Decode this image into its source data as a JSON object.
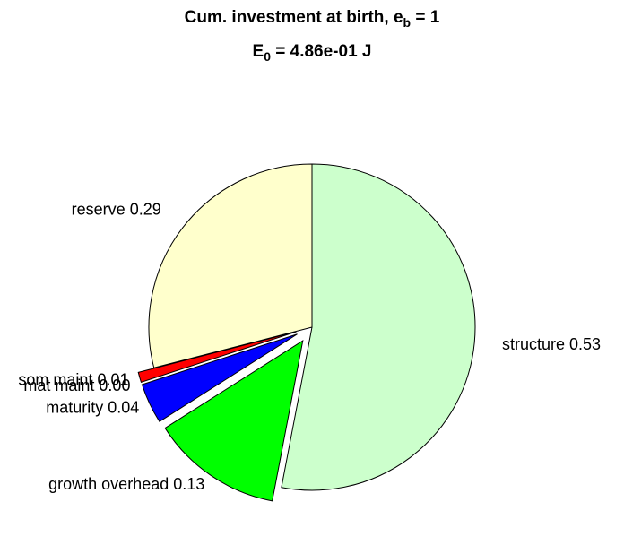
{
  "chart_data": {
    "type": "pie",
    "title": [
      "Cum. investment at birth, e",
      "b",
      " = 1"
    ],
    "subtitle": [
      "E",
      "0",
      " = 4.86e-01 J"
    ],
    "categories": [
      "structure",
      "growth overhead",
      "maturity",
      "mat maint",
      "som maint",
      "reserve"
    ],
    "values": [
      0.53,
      0.13,
      0.04,
      0,
      0.01,
      0.29
    ],
    "value_labels": [
      "0.53",
      "0.13",
      "0.04",
      "0.00",
      "0.01",
      "0.29"
    ],
    "colors": [
      "#ccffcc",
      "#00ff00",
      "#0000ff",
      "#ff00ff",
      "#ff0000",
      "#ffffcc"
    ],
    "explode": [
      0,
      1,
      1,
      1,
      1,
      0
    ]
  }
}
